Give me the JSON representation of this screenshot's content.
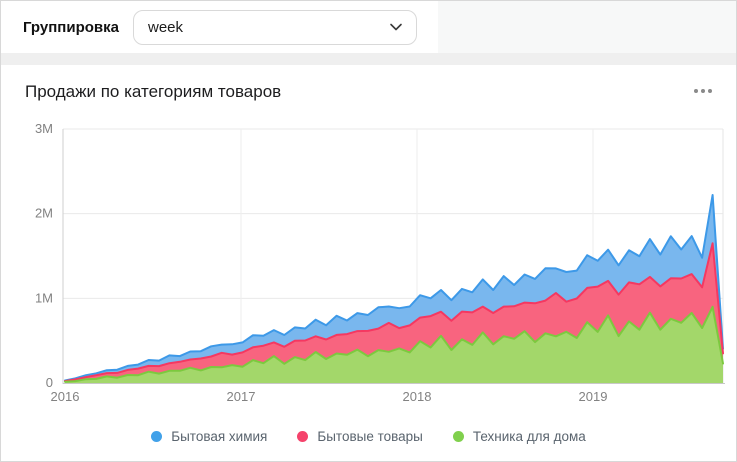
{
  "toolbar": {
    "grouping_label": "Группировка",
    "grouping_value": "week"
  },
  "card": {
    "title": "Продажи по категориям товаров"
  },
  "chart_data": {
    "type": "area",
    "stacked": true,
    "title": "Продажи по категориям товаров",
    "grouping": "week",
    "grid": true,
    "legend_position": "bottom",
    "x_range": [
      2016,
      2019.74
    ],
    "x_ticks": [
      "2016",
      "2017",
      "2018",
      "2019"
    ],
    "x_tick_values": [
      2016,
      2017,
      2018,
      2019
    ],
    "y_ticks": [
      "0",
      "1M",
      "2M",
      "3M"
    ],
    "y_tick_values": [
      0,
      1000000,
      2000000,
      3000000
    ],
    "ylim": [
      0,
      3000000
    ],
    "values_unit": "thousands",
    "axis_text_color": "#828282",
    "series": [
      {
        "name": "Бытовая химия",
        "color": "#3d99e8",
        "fill": "#79b7ee",
        "dot_color": "#41a1e9",
        "stack_order": 3,
        "values": [
          6,
          12,
          22,
          23,
          34,
          38,
          47,
          47,
          70,
          64,
          92,
          68,
          95,
          87,
          121,
          96,
          121,
          118,
          143,
          117,
          145,
          140,
          158,
          142,
          196,
          168,
          226,
          160,
          213,
          188,
          251,
          194,
          236,
          224,
          265,
          210,
          257,
          243,
          268,
          237,
          322,
          272,
          361,
          251,
          331,
          288,
          382,
          291,
          351,
          330,
          386,
          304,
          368,
          346,
          379,
          332,
          447,
          375,
          496,
          343,
          449,
          350,
          570,
          55
        ]
      },
      {
        "name": "Бытовые товары",
        "color": "#f53861",
        "fill": "#f8647f",
        "dot_color": "#f5426b",
        "stack_order": 2,
        "values": [
          8,
          20,
          25,
          43,
          39,
          56,
          60,
          78,
          68,
          89,
          90,
          106,
          98,
          140,
          124,
          171,
          124,
          169,
          152,
          207,
          162,
          200,
          193,
          231,
          186,
          230,
          220,
          245,
          218,
          299,
          255,
          341,
          239,
          318,
          278,
          371,
          284,
          345,
          327,
          384,
          304,
          370,
          349,
          384,
          338,
          458,
          386,
          511,
          355,
          467,
          405,
          535,
          407,
          490,
          461,
          537,
          423,
          511,
          479,
          523,
          458,
          480,
          750,
          120
        ]
      },
      {
        "name": "Техника для дома",
        "color": "#7cc93f",
        "fill": "#a3d76a",
        "dot_color": "#80d04d",
        "stack_order": 1,
        "values": [
          15,
          23,
          45,
          49,
          78,
          63,
          95,
          92,
          134,
          111,
          144,
          144,
          179,
          149,
          189,
          186,
          212,
          193,
          270,
          234,
          318,
          227,
          306,
          271,
          366,
          284,
          348,
          333,
          395,
          316,
          388,
          369,
          409,
          362,
          494,
          419,
          558,
          390,
          516,
          450,
          598,
          457,
          553,
          522,
          612,
          483,
          587,
          552,
          605,
          531,
          718,
          604,
          799,
          554,
          727,
          629,
          830,
          630,
          758,
          711,
          828,
          650,
          900,
          230
        ]
      }
    ]
  }
}
